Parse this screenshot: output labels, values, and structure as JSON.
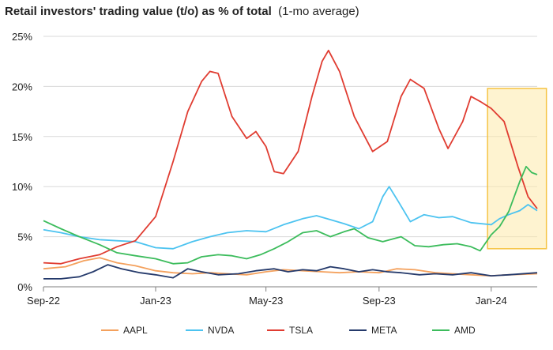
{
  "title": "Retail investors' trading value (t/o) as % of total",
  "subtitle": "(1-mo average)",
  "chart_data": {
    "type": "line",
    "title": "Retail investors' trading value (t/o) as % of total",
    "subtitle": "(1-mo average)",
    "xlabel": "",
    "ylabel": "",
    "x_ticks": [
      "Sep-22",
      "Jan-23",
      "May-23",
      "Sep-23",
      "Jan-24"
    ],
    "y_ticks": [
      "0%",
      "5%",
      "10%",
      "15%",
      "20%",
      "25%"
    ],
    "ylim": [
      0,
      25
    ],
    "xlim": [
      "2022-09-01",
      "2024-02-20"
    ],
    "grid": "horizontal",
    "legend": "bottom",
    "highlight": {
      "x_start": "2023-12-28",
      "x_end": "2024-03-01",
      "y_start": 3.8,
      "y_end": 19.8,
      "color": "#f5c342"
    },
    "series": [
      {
        "name": "AAPL",
        "color": "#f4a15d",
        "points": [
          [
            "2022-09-01",
            1.8
          ],
          [
            "2022-09-25",
            2.0
          ],
          [
            "2022-10-15",
            2.6
          ],
          [
            "2022-11-01",
            2.9
          ],
          [
            "2022-11-20",
            2.4
          ],
          [
            "2022-12-10",
            2.1
          ],
          [
            "2023-01-01",
            1.6
          ],
          [
            "2023-01-20",
            1.4
          ],
          [
            "2023-02-10",
            1.3
          ],
          [
            "2023-03-01",
            1.4
          ],
          [
            "2023-03-20",
            1.3
          ],
          [
            "2023-04-10",
            1.2
          ],
          [
            "2023-05-01",
            1.5
          ],
          [
            "2023-05-20",
            1.7
          ],
          [
            "2023-06-10",
            1.6
          ],
          [
            "2023-07-01",
            1.5
          ],
          [
            "2023-07-20",
            1.4
          ],
          [
            "2023-08-10",
            1.5
          ],
          [
            "2023-09-01",
            1.4
          ],
          [
            "2023-09-20",
            1.8
          ],
          [
            "2023-10-10",
            1.7
          ],
          [
            "2023-11-01",
            1.4
          ],
          [
            "2023-11-20",
            1.3
          ],
          [
            "2023-12-10",
            1.2
          ],
          [
            "2024-01-01",
            1.1
          ],
          [
            "2024-01-20",
            1.2
          ],
          [
            "2024-02-20",
            1.3
          ]
        ]
      },
      {
        "name": "NVDA",
        "color": "#4cc3f0",
        "points": [
          [
            "2022-09-01",
            5.7
          ],
          [
            "2022-09-20",
            5.4
          ],
          [
            "2022-10-10",
            5.0
          ],
          [
            "2022-11-01",
            4.7
          ],
          [
            "2022-11-20",
            4.6
          ],
          [
            "2022-12-10",
            4.5
          ],
          [
            "2023-01-01",
            3.9
          ],
          [
            "2023-01-20",
            3.8
          ],
          [
            "2023-02-10",
            4.5
          ],
          [
            "2023-03-01",
            5.0
          ],
          [
            "2023-03-20",
            5.4
          ],
          [
            "2023-04-10",
            5.6
          ],
          [
            "2023-05-01",
            5.5
          ],
          [
            "2023-05-20",
            6.2
          ],
          [
            "2023-06-10",
            6.8
          ],
          [
            "2023-06-25",
            7.1
          ],
          [
            "2023-07-10",
            6.7
          ],
          [
            "2023-07-25",
            6.3
          ],
          [
            "2023-08-10",
            5.8
          ],
          [
            "2023-08-25",
            6.5
          ],
          [
            "2023-09-05",
            9.0
          ],
          [
            "2023-09-12",
            10.0
          ],
          [
            "2023-09-22",
            8.5
          ],
          [
            "2023-10-05",
            6.5
          ],
          [
            "2023-10-20",
            7.2
          ],
          [
            "2023-11-05",
            6.9
          ],
          [
            "2023-11-20",
            7.0
          ],
          [
            "2023-12-10",
            6.4
          ],
          [
            "2024-01-01",
            6.2
          ],
          [
            "2024-01-10",
            6.8
          ],
          [
            "2024-01-20",
            7.2
          ],
          [
            "2024-02-01",
            7.6
          ],
          [
            "2024-02-10",
            8.2
          ],
          [
            "2024-02-20",
            7.6
          ]
        ]
      },
      {
        "name": "TSLA",
        "color": "#e03c31",
        "points": [
          [
            "2022-09-01",
            2.4
          ],
          [
            "2022-09-20",
            2.3
          ],
          [
            "2022-10-10",
            2.8
          ],
          [
            "2022-11-01",
            3.2
          ],
          [
            "2022-11-20",
            4.0
          ],
          [
            "2022-12-10",
            4.6
          ],
          [
            "2023-01-01",
            7.0
          ],
          [
            "2023-01-20",
            12.5
          ],
          [
            "2023-02-05",
            17.5
          ],
          [
            "2023-02-20",
            20.5
          ],
          [
            "2023-03-01",
            21.5
          ],
          [
            "2023-03-10",
            21.3
          ],
          [
            "2023-03-25",
            17.0
          ],
          [
            "2023-04-10",
            14.8
          ],
          [
            "2023-04-20",
            15.5
          ],
          [
            "2023-05-01",
            14.0
          ],
          [
            "2023-05-10",
            11.5
          ],
          [
            "2023-05-20",
            11.3
          ],
          [
            "2023-06-05",
            13.5
          ],
          [
            "2023-06-20",
            19.0
          ],
          [
            "2023-07-01",
            22.5
          ],
          [
            "2023-07-08",
            23.6
          ],
          [
            "2023-07-20",
            21.5
          ],
          [
            "2023-08-05",
            17.0
          ],
          [
            "2023-08-25",
            13.5
          ],
          [
            "2023-09-10",
            14.5
          ],
          [
            "2023-09-25",
            19.0
          ],
          [
            "2023-10-05",
            20.7
          ],
          [
            "2023-10-20",
            19.8
          ],
          [
            "2023-11-05",
            15.8
          ],
          [
            "2023-11-15",
            13.8
          ],
          [
            "2023-12-01",
            16.5
          ],
          [
            "2023-12-10",
            19.0
          ],
          [
            "2023-12-20",
            18.5
          ],
          [
            "2024-01-01",
            17.8
          ],
          [
            "2024-01-15",
            16.5
          ],
          [
            "2024-01-30",
            12.0
          ],
          [
            "2024-02-10",
            9.0
          ],
          [
            "2024-02-20",
            7.8
          ]
        ]
      },
      {
        "name": "META",
        "color": "#253a6b",
        "points": [
          [
            "2022-09-01",
            0.8
          ],
          [
            "2022-09-20",
            0.8
          ],
          [
            "2022-10-10",
            1.0
          ],
          [
            "2022-10-25",
            1.5
          ],
          [
            "2022-11-10",
            2.2
          ],
          [
            "2022-11-25",
            1.8
          ],
          [
            "2022-12-15",
            1.4
          ],
          [
            "2023-01-01",
            1.2
          ],
          [
            "2023-01-20",
            0.9
          ],
          [
            "2023-02-05",
            1.8
          ],
          [
            "2023-02-20",
            1.5
          ],
          [
            "2023-03-10",
            1.2
          ],
          [
            "2023-04-01",
            1.3
          ],
          [
            "2023-04-20",
            1.6
          ],
          [
            "2023-05-10",
            1.8
          ],
          [
            "2023-05-25",
            1.5
          ],
          [
            "2023-06-10",
            1.7
          ],
          [
            "2023-06-25",
            1.6
          ],
          [
            "2023-07-10",
            2.0
          ],
          [
            "2023-07-25",
            1.8
          ],
          [
            "2023-08-10",
            1.5
          ],
          [
            "2023-08-25",
            1.7
          ],
          [
            "2023-09-10",
            1.5
          ],
          [
            "2023-09-25",
            1.4
          ],
          [
            "2023-10-15",
            1.2
          ],
          [
            "2023-11-01",
            1.3
          ],
          [
            "2023-11-20",
            1.2
          ],
          [
            "2023-12-10",
            1.4
          ],
          [
            "2024-01-01",
            1.1
          ],
          [
            "2024-01-20",
            1.2
          ],
          [
            "2024-02-20",
            1.4
          ]
        ]
      },
      {
        "name": "AMD",
        "color": "#3cbc5c",
        "points": [
          [
            "2022-09-01",
            6.6
          ],
          [
            "2022-09-20",
            5.8
          ],
          [
            "2022-10-10",
            5.0
          ],
          [
            "2022-11-01",
            4.2
          ],
          [
            "2022-11-20",
            3.4
          ],
          [
            "2022-12-10",
            3.1
          ],
          [
            "2023-01-01",
            2.8
          ],
          [
            "2023-01-20",
            2.3
          ],
          [
            "2023-02-05",
            2.4
          ],
          [
            "2023-02-20",
            3.0
          ],
          [
            "2023-03-10",
            3.2
          ],
          [
            "2023-03-25",
            3.1
          ],
          [
            "2023-04-10",
            2.8
          ],
          [
            "2023-04-25",
            3.2
          ],
          [
            "2023-05-10",
            3.8
          ],
          [
            "2023-05-25",
            4.5
          ],
          [
            "2023-06-10",
            5.4
          ],
          [
            "2023-06-25",
            5.6
          ],
          [
            "2023-07-10",
            5.0
          ],
          [
            "2023-07-25",
            5.5
          ],
          [
            "2023-08-05",
            5.8
          ],
          [
            "2023-08-20",
            4.9
          ],
          [
            "2023-09-05",
            4.5
          ],
          [
            "2023-09-25",
            5.0
          ],
          [
            "2023-10-10",
            4.1
          ],
          [
            "2023-10-25",
            4.0
          ],
          [
            "2023-11-10",
            4.2
          ],
          [
            "2023-11-25",
            4.3
          ],
          [
            "2023-12-10",
            4.0
          ],
          [
            "2023-12-20",
            3.6
          ],
          [
            "2024-01-01",
            5.2
          ],
          [
            "2024-01-10",
            6.0
          ],
          [
            "2024-01-20",
            7.5
          ],
          [
            "2024-02-01",
            10.5
          ],
          [
            "2024-02-08",
            12.0
          ],
          [
            "2024-02-14",
            11.4
          ],
          [
            "2024-02-20",
            11.2
          ]
        ]
      }
    ]
  }
}
